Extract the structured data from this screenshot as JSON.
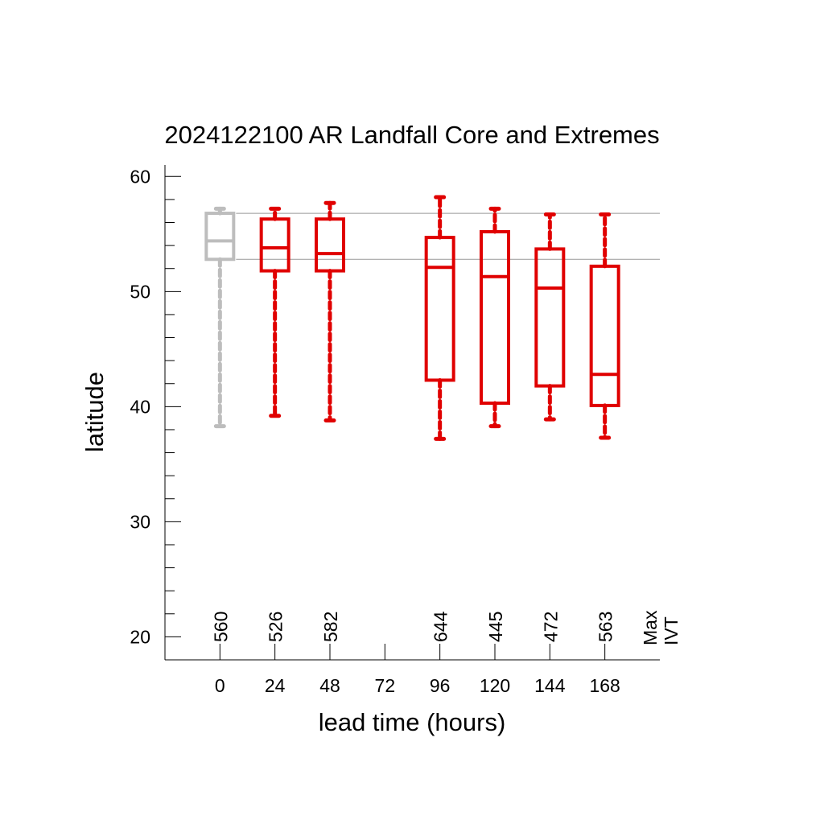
{
  "chart_data": {
    "type": "box",
    "title": "2024122100 AR Landfall Core and Extremes",
    "xlabel": "lead time (hours)",
    "ylabel": "latitude",
    "ylim": [
      18,
      61
    ],
    "yticks": [
      20,
      30,
      40,
      50,
      60
    ],
    "y_minor_step": 2,
    "categories": [
      "0",
      "24",
      "48",
      "72",
      "96",
      "120",
      "144",
      "168"
    ],
    "x_values": [
      0,
      24,
      48,
      72,
      96,
      120,
      144,
      168
    ],
    "xlim": [
      -24,
      192
    ],
    "max_ivt_label": [
      "Max",
      "IVT"
    ],
    "reference_lines": [
      56.8,
      52.8
    ],
    "colors": {
      "analysis": "#bdbdbd",
      "forecast": "#e00000",
      "axis": "#000000",
      "reference": "#999999"
    },
    "boxes": [
      {
        "x": 0,
        "min": 38.3,
        "q1": 52.8,
        "median": 54.4,
        "q3": 56.8,
        "max": 57.2,
        "max_ivt": "560",
        "color": "analysis"
      },
      {
        "x": 24,
        "min": 39.2,
        "q1": 51.8,
        "median": 53.8,
        "q3": 56.3,
        "max": 57.2,
        "max_ivt": "526",
        "color": "forecast"
      },
      {
        "x": 48,
        "min": 38.8,
        "q1": 51.8,
        "median": 53.3,
        "q3": 56.3,
        "max": 57.7,
        "max_ivt": "582",
        "color": "forecast"
      },
      {
        "x": 96,
        "min": 37.2,
        "q1": 42.3,
        "median": 52.1,
        "q3": 54.7,
        "max": 58.2,
        "max_ivt": "644",
        "color": "forecast"
      },
      {
        "x": 120,
        "min": 38.3,
        "q1": 40.3,
        "median": 51.3,
        "q3": 55.2,
        "max": 57.2,
        "max_ivt": "445",
        "color": "forecast"
      },
      {
        "x": 144,
        "min": 38.9,
        "q1": 41.8,
        "median": 50.3,
        "q3": 53.7,
        "max": 56.7,
        "max_ivt": "472",
        "color": "forecast"
      },
      {
        "x": 168,
        "min": 37.3,
        "q1": 40.1,
        "median": 42.8,
        "q3": 52.2,
        "max": 56.7,
        "max_ivt": "563",
        "color": "forecast"
      }
    ]
  }
}
